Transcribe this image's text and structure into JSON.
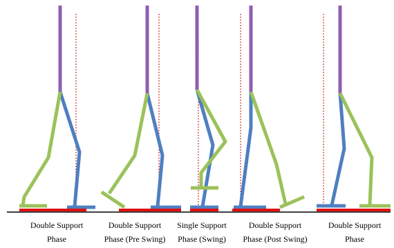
{
  "phases": [
    {
      "line1": "Double Support",
      "line2": "Phase"
    },
    {
      "line1": "Double Support",
      "line2": "Phase (Pre Swing)"
    },
    {
      "line1": "Single Support",
      "line2": "Phase (Swing)"
    },
    {
      "line1": "Double Support",
      "line2": "Phase (Post Swing)"
    },
    {
      "line1": "Double Support",
      "line2": "Phase"
    }
  ]
}
